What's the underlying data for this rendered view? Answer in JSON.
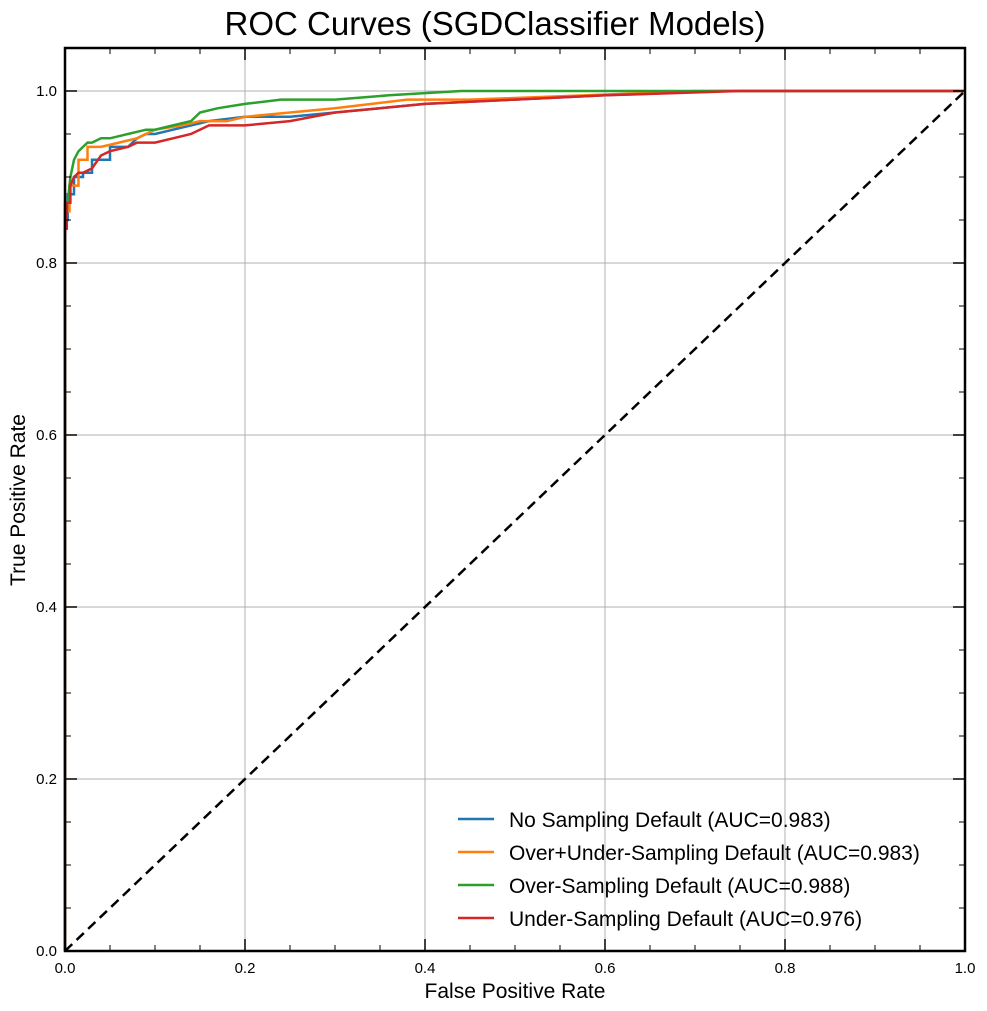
{
  "chart_data": {
    "type": "line",
    "title": "ROC Curves (SGDClassifier Models)",
    "xlabel": "False Positive Rate",
    "ylabel": "True Positive Rate",
    "xlim": [
      0,
      1
    ],
    "ylim": [
      0,
      1.05
    ],
    "xticks": [
      "0.0",
      "0.2",
      "0.4",
      "0.6",
      "0.8",
      "1.0"
    ],
    "yticks": [
      "0.0",
      "0.2",
      "0.4",
      "0.6",
      "0.8",
      "1.0"
    ],
    "grid": true,
    "legend_position": "lower-right",
    "series": [
      {
        "name": "No Sampling Default (AUC=0.983)",
        "color": "#1f77b4",
        "x": [
          0,
          0,
          0.003,
          0.003,
          0.01,
          0.01,
          0.02,
          0.02,
          0.03,
          0.03,
          0.05,
          0.05,
          0.07,
          0.08,
          0.09,
          0.1,
          0.12,
          0.14,
          0.16,
          0.2,
          0.25,
          0.3,
          0.35,
          0.4,
          0.5,
          0.6,
          0.73,
          1.0
        ],
        "y": [
          0,
          0.85,
          0.85,
          0.88,
          0.88,
          0.9,
          0.9,
          0.905,
          0.905,
          0.92,
          0.92,
          0.935,
          0.935,
          0.945,
          0.95,
          0.95,
          0.955,
          0.96,
          0.965,
          0.97,
          0.97,
          0.975,
          0.98,
          0.985,
          0.99,
          0.995,
          1.0,
          1.0
        ]
      },
      {
        "name": "Over+Under-Sampling Default (AUC=0.983)",
        "color": "#ff7f0e",
        "x": [
          0,
          0,
          0.005,
          0.005,
          0.015,
          0.015,
          0.025,
          0.025,
          0.04,
          0.06,
          0.08,
          0.1,
          0.13,
          0.15,
          0.18,
          0.2,
          0.25,
          0.3,
          0.38,
          0.45,
          0.58,
          0.7,
          1.0
        ],
        "y": [
          0,
          0.86,
          0.86,
          0.89,
          0.89,
          0.92,
          0.92,
          0.935,
          0.935,
          0.94,
          0.945,
          0.955,
          0.96,
          0.965,
          0.965,
          0.97,
          0.975,
          0.98,
          0.99,
          0.99,
          0.995,
          1.0,
          1.0
        ]
      },
      {
        "name": "Over-Sampling Default (AUC=0.988)",
        "color": "#2ca02c",
        "x": [
          0,
          0,
          0.003,
          0.006,
          0.01,
          0.015,
          0.02,
          0.025,
          0.03,
          0.04,
          0.05,
          0.07,
          0.09,
          0.1,
          0.12,
          0.14,
          0.15,
          0.17,
          0.2,
          0.24,
          0.3,
          0.36,
          0.44,
          0.6,
          1.0
        ],
        "y": [
          0,
          0.87,
          0.87,
          0.9,
          0.92,
          0.93,
          0.935,
          0.94,
          0.94,
          0.945,
          0.945,
          0.95,
          0.955,
          0.955,
          0.96,
          0.965,
          0.975,
          0.98,
          0.985,
          0.99,
          0.99,
          0.995,
          1.0,
          1.0,
          1.0
        ]
      },
      {
        "name": "Under-Sampling Default (AUC=0.976)",
        "color": "#d62728",
        "x": [
          0,
          0,
          0.002,
          0.002,
          0.006,
          0.006,
          0.01,
          0.015,
          0.02,
          0.03,
          0.04,
          0.05,
          0.07,
          0.08,
          0.1,
          0.12,
          0.14,
          0.16,
          0.2,
          0.25,
          0.3,
          0.35,
          0.4,
          0.5,
          0.6,
          0.75,
          1.0
        ],
        "y": [
          0,
          0.84,
          0.84,
          0.87,
          0.87,
          0.89,
          0.9,
          0.905,
          0.905,
          0.91,
          0.925,
          0.93,
          0.935,
          0.94,
          0.94,
          0.945,
          0.95,
          0.96,
          0.96,
          0.965,
          0.975,
          0.98,
          0.985,
          0.99,
          0.995,
          1.0,
          1.0
        ]
      }
    ],
    "reference_line": {
      "style": "dashed",
      "color": "#000000",
      "x": [
        0,
        1
      ],
      "y": [
        0,
        1
      ]
    }
  }
}
